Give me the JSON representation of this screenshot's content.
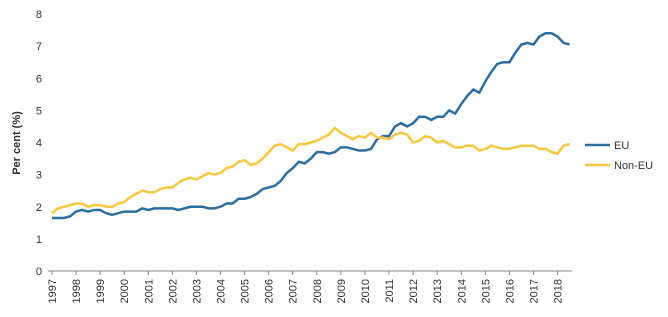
{
  "chart_data": {
    "type": "line",
    "y_label": "Per cent (%)",
    "x": [
      1997,
      1997.25,
      1997.5,
      1997.75,
      1998,
      1998.25,
      1998.5,
      1998.75,
      1999,
      1999.25,
      1999.5,
      1999.75,
      2000,
      2000.25,
      2000.5,
      2000.75,
      2001,
      2001.25,
      2001.5,
      2001.75,
      2002,
      2002.25,
      2002.5,
      2002.75,
      2003,
      2003.25,
      2003.5,
      2003.75,
      2004,
      2004.25,
      2004.5,
      2004.75,
      2005,
      2005.25,
      2005.5,
      2005.75,
      2006,
      2006.25,
      2006.5,
      2006.75,
      2007,
      2007.25,
      2007.5,
      2007.75,
      2008,
      2008.25,
      2008.5,
      2008.75,
      2009,
      2009.25,
      2009.5,
      2009.75,
      2010,
      2010.25,
      2010.5,
      2010.75,
      2011,
      2011.25,
      2011.5,
      2011.75,
      2012,
      2012.25,
      2012.5,
      2012.75,
      2013,
      2013.25,
      2013.5,
      2013.75,
      2014,
      2014.25,
      2014.5,
      2014.75,
      2015,
      2015.25,
      2015.5,
      2015.75,
      2016,
      2016.25,
      2016.5,
      2016.75,
      2017,
      2017.25,
      2017.5,
      2017.75,
      2018,
      2018.25,
      2018.5
    ],
    "series": [
      {
        "name": "EU",
        "color": "#2e6e9e",
        "values": [
          1.65,
          1.65,
          1.65,
          1.7,
          1.85,
          1.9,
          1.85,
          1.9,
          1.9,
          1.8,
          1.75,
          1.8,
          1.85,
          1.85,
          1.85,
          1.95,
          1.9,
          1.95,
          1.95,
          1.95,
          1.95,
          1.9,
          1.95,
          2.0,
          2.0,
          2.0,
          1.95,
          1.95,
          2.0,
          2.1,
          2.1,
          2.25,
          2.25,
          2.3,
          2.4,
          2.55,
          2.6,
          2.65,
          2.8,
          3.05,
          3.2,
          3.4,
          3.35,
          3.5,
          3.7,
          3.7,
          3.65,
          3.7,
          3.85,
          3.85,
          3.8,
          3.75,
          3.75,
          3.8,
          4.1,
          4.2,
          4.2,
          4.5,
          4.6,
          4.5,
          4.6,
          4.8,
          4.8,
          4.7,
          4.8,
          4.8,
          5.0,
          4.9,
          5.2,
          5.45,
          5.65,
          5.55,
          5.9,
          6.2,
          6.45,
          6.5,
          6.5,
          6.8,
          7.05,
          7.1,
          7.05,
          7.3,
          7.4,
          7.4,
          7.3,
          7.1,
          7.05
        ]
      },
      {
        "name": "Non-EU",
        "color": "#f5c842",
        "values": [
          1.8,
          1.95,
          2.0,
          2.05,
          2.1,
          2.1,
          2.0,
          2.05,
          2.05,
          2.0,
          2.0,
          2.1,
          2.15,
          2.3,
          2.4,
          2.5,
          2.45,
          2.45,
          2.55,
          2.6,
          2.6,
          2.75,
          2.85,
          2.9,
          2.85,
          2.95,
          3.05,
          3.0,
          3.05,
          3.2,
          3.25,
          3.4,
          3.45,
          3.3,
          3.35,
          3.5,
          3.7,
          3.9,
          3.95,
          3.85,
          3.75,
          3.95,
          3.95,
          4.0,
          4.05,
          4.15,
          4.25,
          4.45,
          4.3,
          4.2,
          4.1,
          4.2,
          4.15,
          4.3,
          4.15,
          4.15,
          4.1,
          4.25,
          4.3,
          4.25,
          4.0,
          4.05,
          4.2,
          4.15,
          4.0,
          4.05,
          3.95,
          3.85,
          3.85,
          3.9,
          3.9,
          3.75,
          3.8,
          3.9,
          3.85,
          3.8,
          3.8,
          3.85,
          3.9,
          3.9,
          3.9,
          3.8,
          3.8,
          3.7,
          3.65,
          3.9,
          3.95
        ]
      }
    ],
    "xlim": [
      1997,
      2018.6
    ],
    "xticks": [
      1997,
      1998,
      1999,
      2000,
      2001,
      2002,
      2003,
      2004,
      2005,
      2006,
      2007,
      2008,
      2009,
      2010,
      2011,
      2012,
      2013,
      2014,
      2015,
      2016,
      2017,
      2018
    ],
    "ylim": [
      0,
      8
    ],
    "yticks": [
      0,
      1,
      2,
      3,
      4,
      5,
      6,
      7,
      8
    ],
    "legend": "right"
  }
}
